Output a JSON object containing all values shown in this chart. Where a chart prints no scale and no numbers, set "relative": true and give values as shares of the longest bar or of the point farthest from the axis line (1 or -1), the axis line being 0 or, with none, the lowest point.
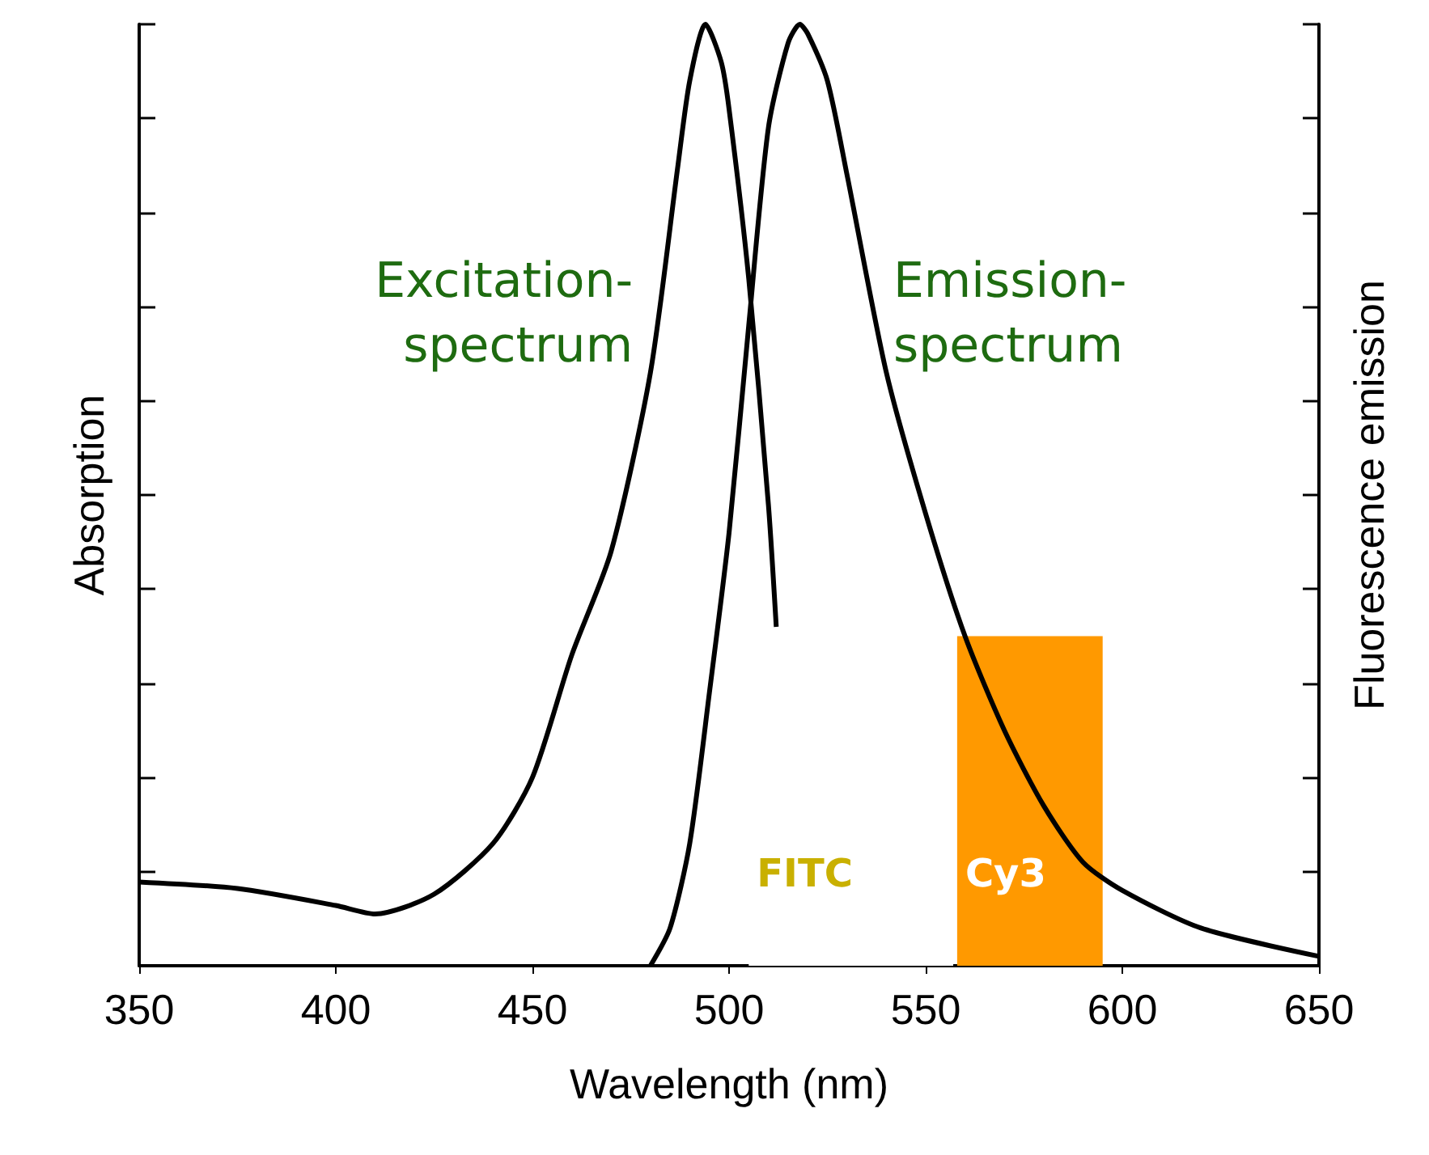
{
  "chart_data": {
    "type": "line",
    "relative": true,
    "xlabel": "Wavelength (nm)",
    "ylabel": "Absorption",
    "y2label": "Fluorescence emission",
    "xlim": [
      350,
      650
    ],
    "xticks": [
      350,
      400,
      450,
      500,
      550,
      600,
      650
    ],
    "tick_labels": "x",
    "grid": false,
    "legend": false,
    "marker": "none",
    "line_style": "solid",
    "series": [
      {
        "name": "Excitation-spectrum",
        "color": "#000000",
        "x": [
          350,
          375,
          400,
          410,
          425,
          440,
          450,
          460,
          470,
          480,
          487,
          490,
          494,
          498,
          500,
          505,
          510,
          512
        ],
        "values": [
          0.089,
          0.082,
          0.064,
          0.055,
          0.076,
          0.13,
          0.2,
          0.33,
          0.44,
          0.63,
          0.85,
          0.94,
          1.0,
          0.96,
          0.91,
          0.73,
          0.49,
          0.36
        ]
      },
      {
        "name": "Emission-spectrum",
        "color": "#000000",
        "axis": "y2",
        "x": [
          480,
          485,
          490,
          495,
          500,
          505,
          510,
          515,
          518,
          520,
          525,
          530,
          540,
          550,
          560,
          570,
          580,
          590,
          600,
          620,
          650
        ],
        "values": [
          0,
          0.04,
          0.13,
          0.29,
          0.46,
          0.68,
          0.89,
          0.98,
          1.0,
          0.99,
          0.94,
          0.84,
          0.63,
          0.48,
          0.35,
          0.25,
          0.17,
          0.11,
          0.08,
          0.04,
          0.01
        ]
      }
    ],
    "bands": [
      {
        "axis": "x",
        "from": 505,
        "to": 557,
        "label": "FITC",
        "color": "#ffffff"
      },
      {
        "axis": "x",
        "from": 558,
        "to": 595,
        "label": "Cy3",
        "color": "#ff9900"
      }
    ]
  }
}
